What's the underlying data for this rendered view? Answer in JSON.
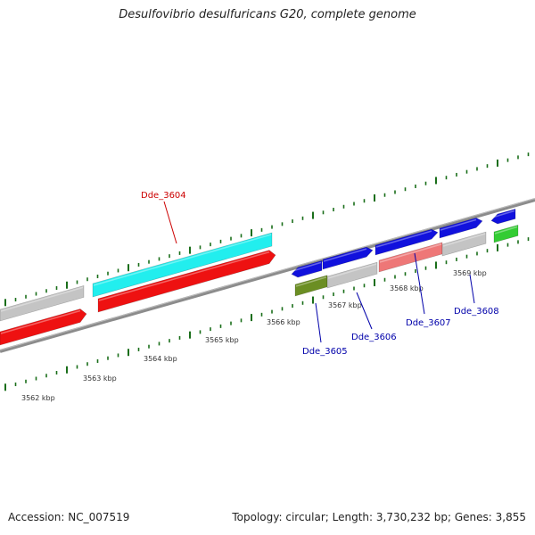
{
  "title": "Desulfovibrio desulfuricans G20, complete genome",
  "footer": {
    "accession": "Accession: NC_007519",
    "stats": "Topology: circular; Length: 3,730,232 bp; Genes: 3,855"
  },
  "colors": {
    "backbone": "#8c8c8c",
    "tick": "#1a6e1a",
    "tick_label": "#333333",
    "gene_label_red": "#cc0000",
    "gene_label_blue": "#0000aa",
    "red": "#ee1111",
    "cyan": "#22eeee",
    "gray": "#c4c4c4",
    "blue": "#1111dd",
    "olive": "#6b8e23",
    "salmon": "#ee7777",
    "green": "#33cc33"
  },
  "scale_labels": [
    "3562 kbp",
    "3563 kbp",
    "3564 kbp",
    "3565 kbp",
    "3566 kbp",
    "3567 kbp",
    "3568 kbp",
    "3569 kbp"
  ],
  "gene_labels": [
    "Dde_3604",
    "Dde_3605",
    "Dde_3606",
    "Dde_3607",
    "Dde_3608"
  ]
}
